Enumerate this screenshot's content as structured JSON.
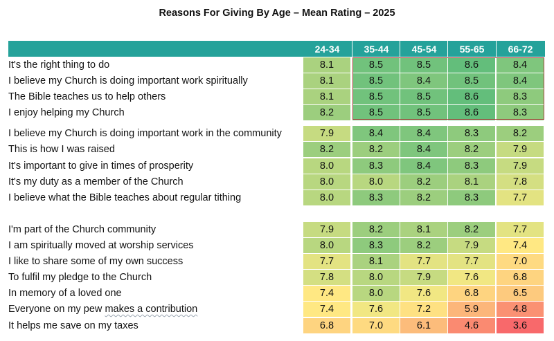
{
  "chart_data": {
    "type": "table",
    "title": "Reasons For Giving By Age – Mean Rating – 2025",
    "columns": [
      "24-34",
      "35-44",
      "45-54",
      "55-65",
      "66-72"
    ],
    "row_groups": [
      {
        "rows": [
          {
            "label": "It's the right thing to do",
            "values": [
              8.1,
              8.5,
              8.5,
              8.6,
              8.4
            ]
          },
          {
            "label": "I believe my Church is doing important work spiritually",
            "values": [
              8.1,
              8.5,
              8.4,
              8.5,
              8.4
            ]
          },
          {
            "label": "The Bible teaches us to help others",
            "values": [
              8.1,
              8.5,
              8.5,
              8.6,
              8.3
            ]
          },
          {
            "label": "I enjoy helping my Church",
            "values": [
              8.2,
              8.5,
              8.5,
              8.6,
              8.3
            ]
          }
        ]
      },
      {
        "rows": [
          {
            "label": "I believe my Church is doing important work in the community",
            "values": [
              7.9,
              8.4,
              8.4,
              8.3,
              8.2
            ]
          },
          {
            "label": "This is how I was raised",
            "values": [
              8.2,
              8.2,
              8.4,
              8.2,
              7.9
            ]
          },
          {
            "label": "It's important to give in times of prosperity",
            "values": [
              8.0,
              8.3,
              8.4,
              8.3,
              7.9
            ]
          },
          {
            "label": "It's my duty as a member of the Church",
            "values": [
              8.0,
              8.0,
              8.2,
              8.1,
              7.8
            ]
          },
          {
            "label": "I believe what the Bible teaches about regular tithing",
            "values": [
              8.0,
              8.3,
              8.2,
              8.3,
              7.7
            ]
          }
        ]
      },
      {
        "rows": [
          {
            "label": "I'm part of the Church community",
            "values": [
              7.9,
              8.2,
              8.1,
              8.2,
              7.7
            ]
          },
          {
            "label": "I am spiritually moved at worship services",
            "values": [
              8.0,
              8.3,
              8.2,
              7.9,
              7.4
            ]
          },
          {
            "label": "I like to share some of my own success",
            "values": [
              7.7,
              8.1,
              7.7,
              7.7,
              7.0
            ]
          },
          {
            "label": "To fulfil my pledge to the Church",
            "values": [
              7.8,
              8.0,
              7.9,
              7.6,
              6.8
            ]
          },
          {
            "label": "In memory of a loved one",
            "values": [
              7.4,
              8.0,
              7.6,
              6.8,
              6.5
            ]
          },
          {
            "label": "Everyone on my pew makes a contribution",
            "values": [
              7.4,
              7.6,
              7.2,
              5.9,
              4.8
            ]
          },
          {
            "label": "It helps me save on my taxes",
            "values": [
              6.8,
              7.0,
              6.1,
              4.6,
              3.6
            ]
          }
        ]
      }
    ],
    "color_scale": {
      "low": 3.6,
      "mid": 7.5,
      "high": 8.6,
      "low_color": "#f8696b",
      "mid_color": "#ffeb84",
      "high_color": "#63be7b"
    },
    "header_color": "#25a29a"
  }
}
